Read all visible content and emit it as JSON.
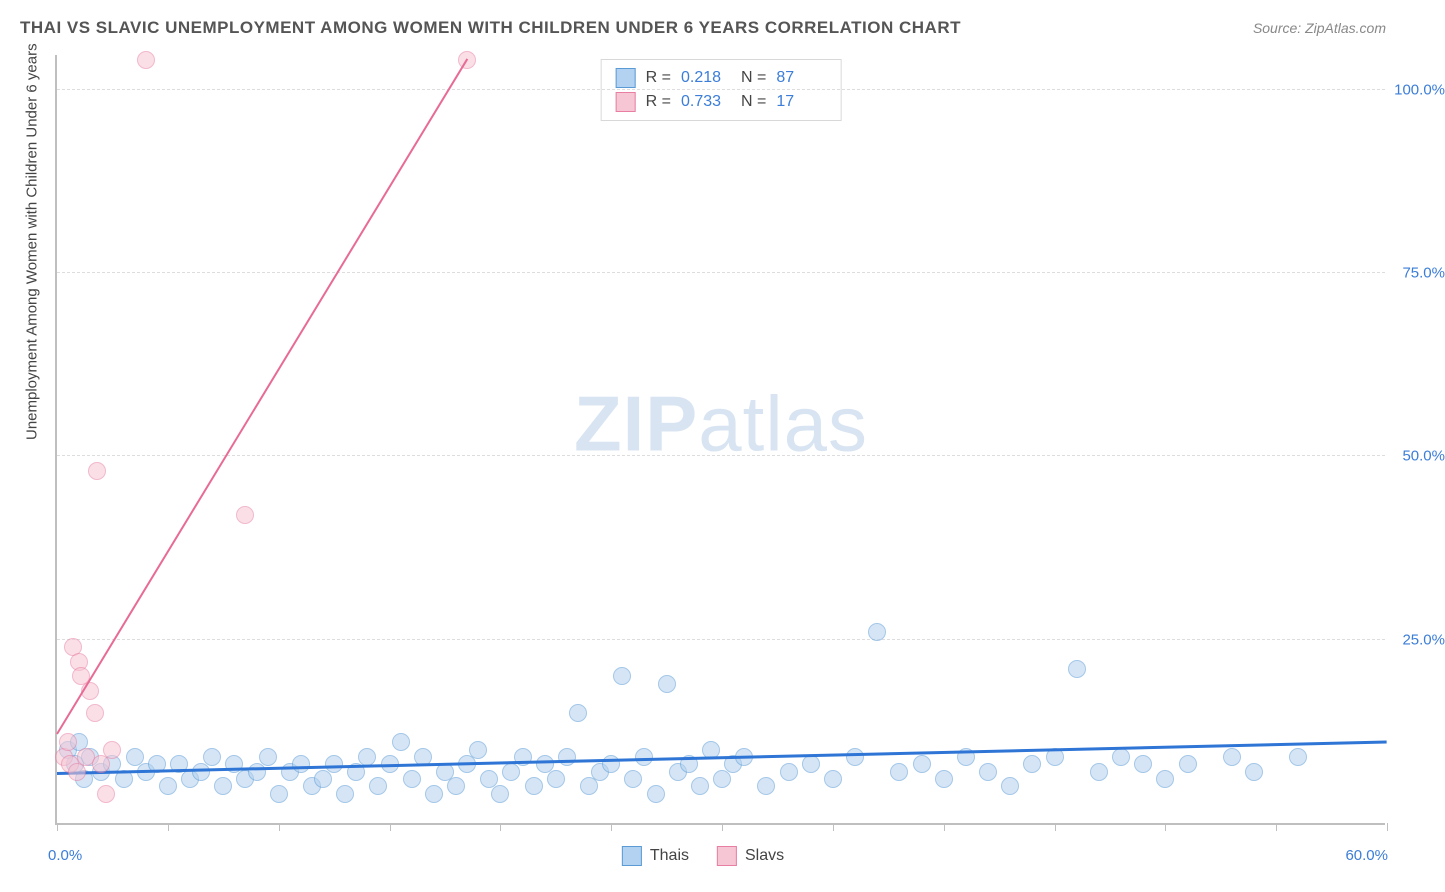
{
  "title": "THAI VS SLAVIC UNEMPLOYMENT AMONG WOMEN WITH CHILDREN UNDER 6 YEARS CORRELATION CHART",
  "source": "Source: ZipAtlas.com",
  "yaxis_label": "Unemployment Among Women with Children Under 6 years",
  "watermark_bold": "ZIP",
  "watermark_rest": "atlas",
  "chart": {
    "type": "scatter",
    "xlim": [
      0,
      60
    ],
    "ylim": [
      0,
      105
    ],
    "xticks": [
      0,
      5,
      10,
      15,
      20,
      25,
      30,
      35,
      40,
      45,
      50,
      55,
      60
    ],
    "yticks": [
      25,
      50,
      75,
      100
    ],
    "ytick_labels": [
      "25.0%",
      "50.0%",
      "75.0%",
      "100.0%"
    ],
    "x_min_label": "0.0%",
    "x_max_label": "60.0%",
    "background": "#ffffff",
    "grid_color": "#dddddd",
    "axis_color": "#bfbfbf",
    "tick_label_color": "#3b7dd8",
    "marker_radius": 9,
    "marker_opacity": 0.55,
    "series": [
      {
        "name": "Thais",
        "legend_label": "Thais",
        "color_fill": "#b3d1f0",
        "color_stroke": "#5b9bd5",
        "trend_color": "#2e75d6",
        "trend_width": 3,
        "R": "0.218",
        "N": "87",
        "trend": {
          "x1": 0,
          "y1": 6.5,
          "x2": 60,
          "y2": 10.8
        },
        "points": [
          {
            "x": 0.5,
            "y": 10
          },
          {
            "x": 0.8,
            "y": 8
          },
          {
            "x": 1.0,
            "y": 11
          },
          {
            "x": 1.2,
            "y": 6
          },
          {
            "x": 1.5,
            "y": 9
          },
          {
            "x": 2.0,
            "y": 7
          },
          {
            "x": 2.5,
            "y": 8
          },
          {
            "x": 3.0,
            "y": 6
          },
          {
            "x": 3.5,
            "y": 9
          },
          {
            "x": 4.0,
            "y": 7
          },
          {
            "x": 4.5,
            "y": 8
          },
          {
            "x": 5.0,
            "y": 5
          },
          {
            "x": 5.5,
            "y": 8
          },
          {
            "x": 6.0,
            "y": 6
          },
          {
            "x": 6.5,
            "y": 7
          },
          {
            "x": 7.0,
            "y": 9
          },
          {
            "x": 7.5,
            "y": 5
          },
          {
            "x": 8.0,
            "y": 8
          },
          {
            "x": 8.5,
            "y": 6
          },
          {
            "x": 9.0,
            "y": 7
          },
          {
            "x": 9.5,
            "y": 9
          },
          {
            "x": 10.0,
            "y": 4
          },
          {
            "x": 10.5,
            "y": 7
          },
          {
            "x": 11.0,
            "y": 8
          },
          {
            "x": 11.5,
            "y": 5
          },
          {
            "x": 12.0,
            "y": 6
          },
          {
            "x": 12.5,
            "y": 8
          },
          {
            "x": 13.0,
            "y": 4
          },
          {
            "x": 13.5,
            "y": 7
          },
          {
            "x": 14.0,
            "y": 9
          },
          {
            "x": 14.5,
            "y": 5
          },
          {
            "x": 15.0,
            "y": 8
          },
          {
            "x": 15.5,
            "y": 11
          },
          {
            "x": 16.0,
            "y": 6
          },
          {
            "x": 16.5,
            "y": 9
          },
          {
            "x": 17.0,
            "y": 4
          },
          {
            "x": 17.5,
            "y": 7
          },
          {
            "x": 18.0,
            "y": 5
          },
          {
            "x": 18.5,
            "y": 8
          },
          {
            "x": 19.0,
            "y": 10
          },
          {
            "x": 19.5,
            "y": 6
          },
          {
            "x": 20.0,
            "y": 4
          },
          {
            "x": 20.5,
            "y": 7
          },
          {
            "x": 21.0,
            "y": 9
          },
          {
            "x": 21.5,
            "y": 5
          },
          {
            "x": 22.0,
            "y": 8
          },
          {
            "x": 22.5,
            "y": 6
          },
          {
            "x": 23.0,
            "y": 9
          },
          {
            "x": 23.5,
            "y": 15
          },
          {
            "x": 24.0,
            "y": 5
          },
          {
            "x": 24.5,
            "y": 7
          },
          {
            "x": 25.0,
            "y": 8
          },
          {
            "x": 25.5,
            "y": 20
          },
          {
            "x": 26.0,
            "y": 6
          },
          {
            "x": 26.5,
            "y": 9
          },
          {
            "x": 27.0,
            "y": 4
          },
          {
            "x": 27.5,
            "y": 19
          },
          {
            "x": 28.0,
            "y": 7
          },
          {
            "x": 28.5,
            "y": 8
          },
          {
            "x": 29.0,
            "y": 5
          },
          {
            "x": 29.5,
            "y": 10
          },
          {
            "x": 30.0,
            "y": 6
          },
          {
            "x": 30.5,
            "y": 8
          },
          {
            "x": 31.0,
            "y": 9
          },
          {
            "x": 32.0,
            "y": 5
          },
          {
            "x": 33.0,
            "y": 7
          },
          {
            "x": 34.0,
            "y": 8
          },
          {
            "x": 35.0,
            "y": 6
          },
          {
            "x": 36.0,
            "y": 9
          },
          {
            "x": 37.0,
            "y": 26
          },
          {
            "x": 38.0,
            "y": 7
          },
          {
            "x": 39.0,
            "y": 8
          },
          {
            "x": 40.0,
            "y": 6
          },
          {
            "x": 41.0,
            "y": 9
          },
          {
            "x": 42.0,
            "y": 7
          },
          {
            "x": 43.0,
            "y": 5
          },
          {
            "x": 44.0,
            "y": 8
          },
          {
            "x": 45.0,
            "y": 9
          },
          {
            "x": 46.0,
            "y": 21
          },
          {
            "x": 47.0,
            "y": 7
          },
          {
            "x": 48.0,
            "y": 9
          },
          {
            "x": 49.0,
            "y": 8
          },
          {
            "x": 50.0,
            "y": 6
          },
          {
            "x": 51.0,
            "y": 8
          },
          {
            "x": 53.0,
            "y": 9
          },
          {
            "x": 54.0,
            "y": 7
          },
          {
            "x": 56.0,
            "y": 9
          }
        ]
      },
      {
        "name": "Slavs",
        "legend_label": "Slavs",
        "color_fill": "#f6c6d4",
        "color_stroke": "#e87fa2",
        "trend_color": "#e86b95",
        "trend_width": 2,
        "R": "0.733",
        "N": "17",
        "trend": {
          "x1": 0,
          "y1": 12,
          "x2": 18.5,
          "y2": 104
        },
        "points": [
          {
            "x": 0.3,
            "y": 9
          },
          {
            "x": 0.5,
            "y": 11
          },
          {
            "x": 0.6,
            "y": 8
          },
          {
            "x": 0.7,
            "y": 24
          },
          {
            "x": 0.9,
            "y": 7
          },
          {
            "x": 1.0,
            "y": 22
          },
          {
            "x": 1.1,
            "y": 20
          },
          {
            "x": 1.3,
            "y": 9
          },
          {
            "x": 1.5,
            "y": 18
          },
          {
            "x": 1.7,
            "y": 15
          },
          {
            "x": 1.8,
            "y": 48
          },
          {
            "x": 2.0,
            "y": 8
          },
          {
            "x": 2.2,
            "y": 4
          },
          {
            "x": 2.5,
            "y": 10
          },
          {
            "x": 4.0,
            "y": 104
          },
          {
            "x": 8.5,
            "y": 42
          },
          {
            "x": 18.5,
            "y": 104
          }
        ]
      }
    ]
  },
  "legend_top": {
    "R_label": "R  =",
    "N_label": "N  ="
  }
}
